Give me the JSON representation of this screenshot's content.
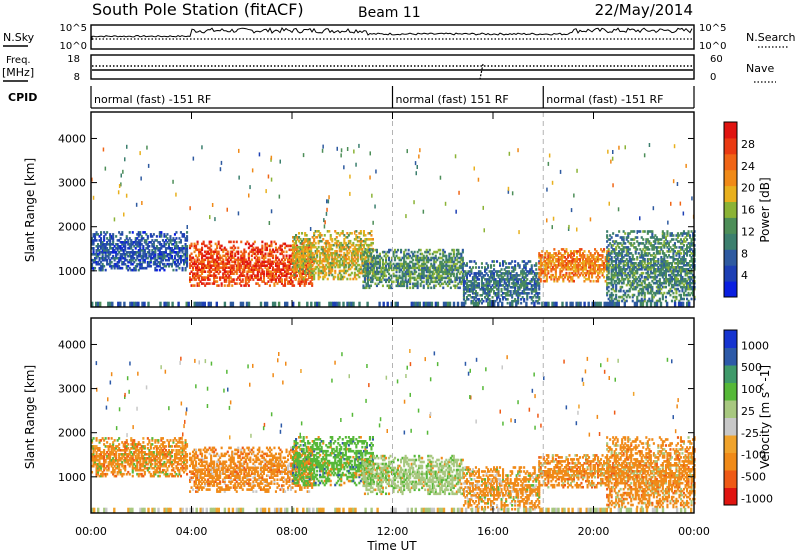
{
  "header": {
    "station": "South Pole Station (fitACF)",
    "beam": "Beam 11",
    "date": "22/May/2014"
  },
  "panels": {
    "nsky_label": "N.Sky",
    "nsky_ticks": [
      "10^5",
      "10^0"
    ],
    "nsearch_label": "N.Search",
    "nsearch_ticks": [
      "10^5",
      "10^0"
    ],
    "freq_label": "Freq.",
    "freq_unit": "[MHz]",
    "freq_ticks": [
      "18",
      "8"
    ],
    "nave_label": "Nave",
    "nave_ticks": [
      "60",
      "0"
    ],
    "cpid_label": "CPID",
    "cpid_segments": [
      {
        "start": 0,
        "end": 12,
        "label": "normal (fast) -151 RF"
      },
      {
        "start": 12,
        "end": 18,
        "label": "normal (fast) 151 RF"
      },
      {
        "start": 18,
        "end": 24,
        "label": "normal (fast) -151 RF"
      }
    ]
  },
  "colors": {
    "power": [
      "#0a1fe0",
      "#1d3fb4",
      "#2e5aa0",
      "#3c7f6e",
      "#4d8e58",
      "#8bb336",
      "#e8b01e",
      "#f08a18",
      "#f06516",
      "#ea3a12",
      "#e01410"
    ],
    "velocity": [
      "#e01410",
      "#ef5a16",
      "#f08a18",
      "#f0a32c",
      "#c8c8c8",
      "#a8c880",
      "#56b838",
      "#3f9a6a",
      "#2d5aa8",
      "#1634d0"
    ],
    "dash": "#b4b4b4"
  },
  "chart_data": [
    {
      "type": "heatmap",
      "name": "power",
      "xlabel": "",
      "ylabel": "Slant Range [km]",
      "xlim": [
        0,
        24
      ],
      "ylim": [
        180,
        4600
      ],
      "yticks": [
        1000,
        2000,
        3000,
        4000
      ],
      "colorbar": {
        "label": "Power [dB]",
        "ticks": [
          "4",
          "8",
          "12",
          "16",
          "20",
          "24",
          "28"
        ],
        "range": [
          0,
          30
        ]
      },
      "regions": [
        {
          "t": [
            3.9,
            8.8
          ],
          "r": [
            650,
            1650
          ],
          "value": 26
        },
        {
          "t": [
            8.0,
            11.2
          ],
          "r": [
            800,
            1900
          ],
          "value": 17
        },
        {
          "t": [
            10.8,
            14.8
          ],
          "r": [
            600,
            1500
          ],
          "value": 11
        },
        {
          "t": [
            14.8,
            17.8
          ],
          "r": [
            250,
            1200
          ],
          "value": 8
        },
        {
          "t": [
            17.8,
            20.6
          ],
          "r": [
            750,
            1500
          ],
          "value": 22
        },
        {
          "t": [
            20.5,
            24.0
          ],
          "r": [
            300,
            1900
          ],
          "value": 10
        },
        {
          "t": [
            0.0,
            3.8
          ],
          "r": [
            1000,
            1900
          ],
          "value": 5
        }
      ]
    },
    {
      "type": "heatmap",
      "name": "velocity",
      "xlabel": "Time UT",
      "ylabel": "Slant Range [km]",
      "xlim": [
        0,
        24
      ],
      "ylim": [
        180,
        4600
      ],
      "xticks": [
        "00:00",
        "04:00",
        "08:00",
        "12:00",
        "16:00",
        "20:00",
        "00:00"
      ],
      "yticks": [
        1000,
        2000,
        3000,
        4000
      ],
      "colorbar": {
        "label": "Velocity [m s^-1]",
        "ticks": [
          "1000",
          "500",
          "100",
          "25",
          "-25",
          "-100",
          "-500",
          "-1000"
        ]
      },
      "regions": [
        {
          "t": [
            3.9,
            8.8
          ],
          "r": [
            650,
            1650
          ],
          "value": -400
        },
        {
          "t": [
            8.0,
            11.2
          ],
          "r": [
            800,
            1900
          ],
          "value": 150
        },
        {
          "t": [
            10.8,
            14.8
          ],
          "r": [
            600,
            1500
          ],
          "value": 60
        },
        {
          "t": [
            14.8,
            17.8
          ],
          "r": [
            250,
            1200
          ],
          "value": -150
        },
        {
          "t": [
            17.8,
            20.6
          ],
          "r": [
            750,
            1500
          ],
          "value": -350
        },
        {
          "t": [
            20.5,
            24.0
          ],
          "r": [
            300,
            1900
          ],
          "value": -300
        },
        {
          "t": [
            0.0,
            3.8
          ],
          "r": [
            1000,
            1900
          ],
          "value": -200
        }
      ]
    }
  ]
}
